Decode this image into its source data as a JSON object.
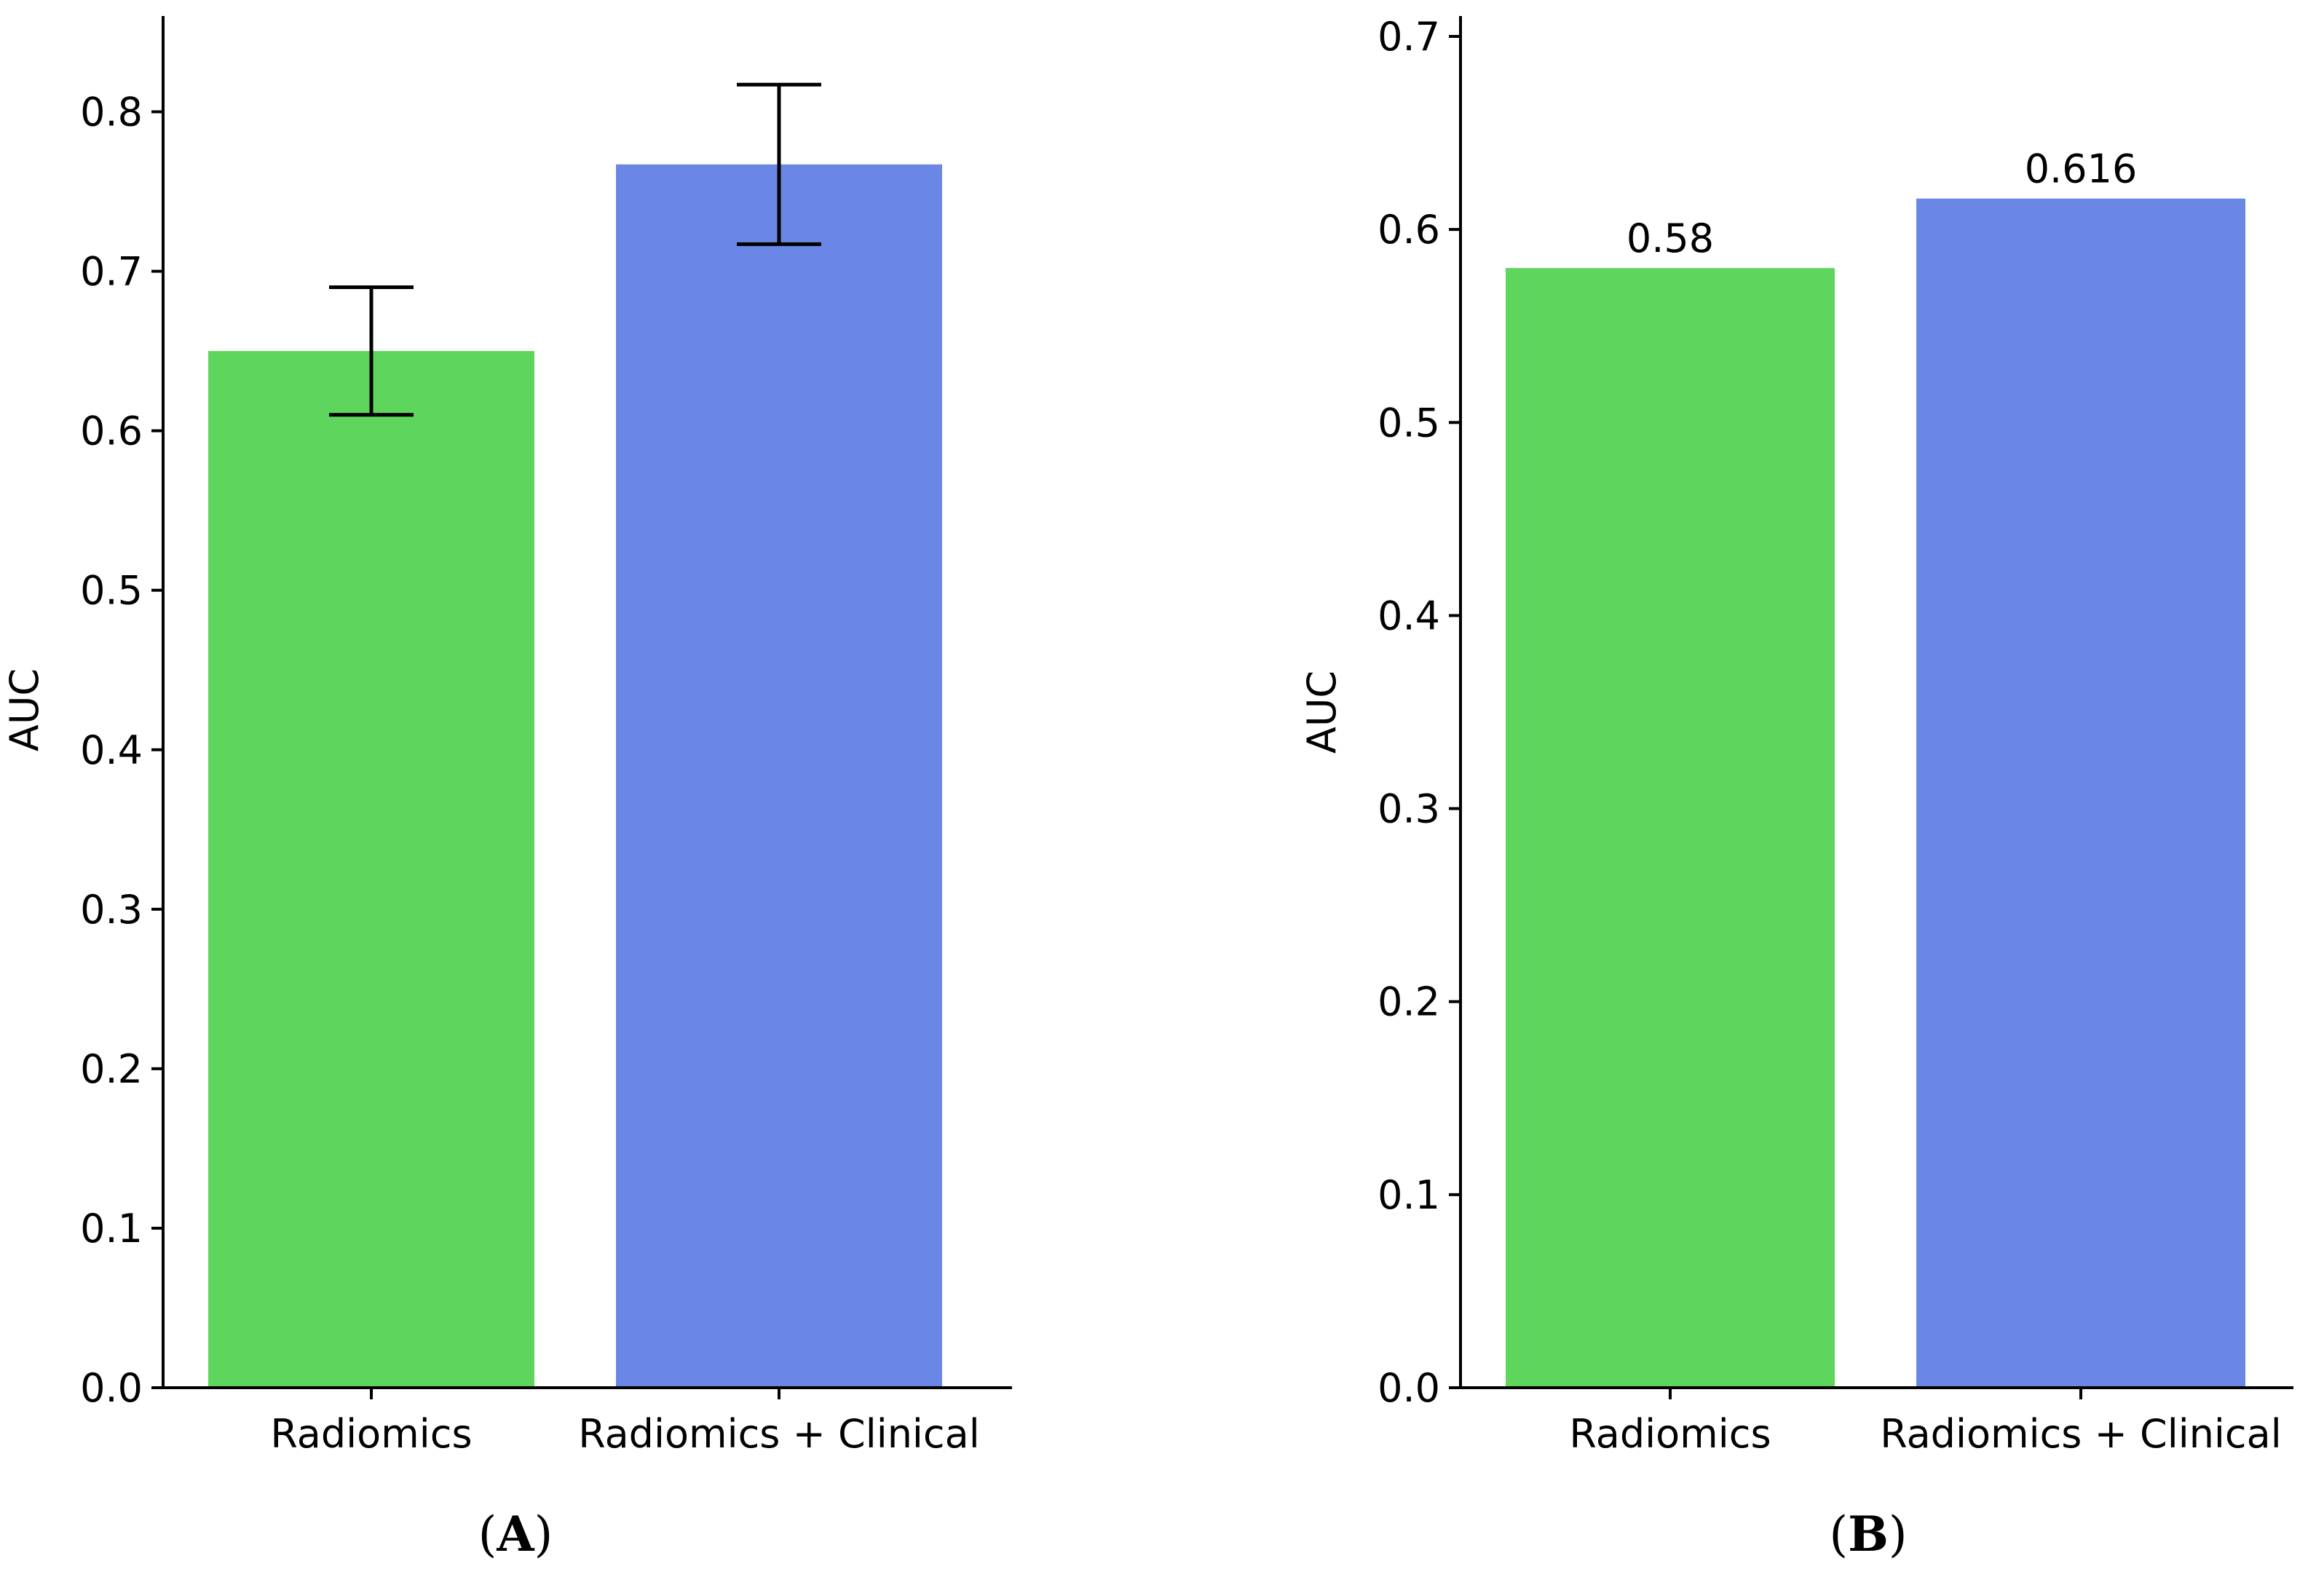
{
  "chart_data": [
    {
      "type": "bar",
      "panel_label": "A",
      "categories": [
        "Radiomics",
        "Radiomics + Clinical"
      ],
      "values": [
        0.65,
        0.767
      ],
      "error_low": [
        0.61,
        0.717
      ],
      "error_high": [
        0.69,
        0.817
      ],
      "ylabel": "AUC",
      "xlabel": "",
      "ylim": [
        0,
        0.85
      ],
      "yticks": [
        "0.0",
        "0.1",
        "0.2",
        "0.3",
        "0.4",
        "0.5",
        "0.6",
        "0.7",
        "0.8"
      ],
      "colors": [
        "#5ed65e",
        "#6a87e6"
      ],
      "data_labels": [],
      "grid": false
    },
    {
      "type": "bar",
      "panel_label": "B",
      "categories": [
        "Radiomics",
        "Radiomics + Clinical"
      ],
      "values": [
        0.58,
        0.616
      ],
      "ylabel": "AUC",
      "xlabel": "",
      "ylim": [
        0,
        0.7
      ],
      "yticks": [
        "0.0",
        "0.1",
        "0.2",
        "0.3",
        "0.4",
        "0.5",
        "0.6",
        "0.7"
      ],
      "colors": [
        "#5ed65e",
        "#6a87e6"
      ],
      "data_labels": [
        "0.58",
        "0.616"
      ],
      "grid": false
    }
  ]
}
